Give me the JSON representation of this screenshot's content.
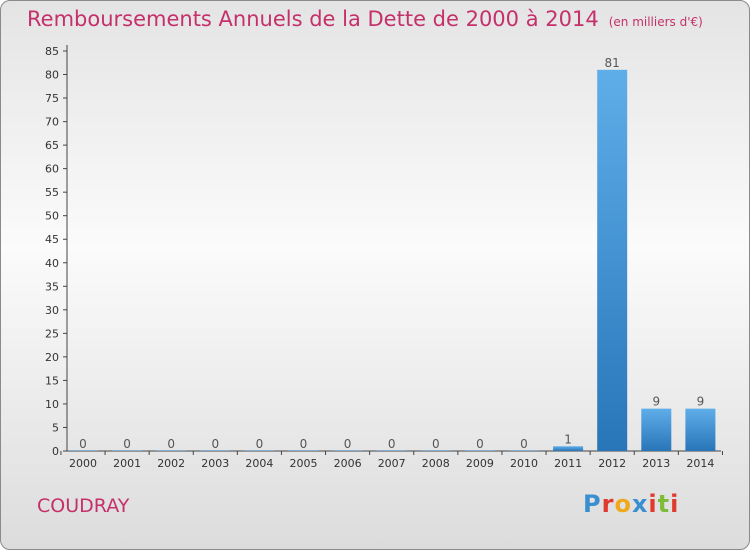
{
  "header": {
    "title": "Remboursements Annuels de la Dette de 2000 à 2014",
    "unit": "(en milliers d'€)"
  },
  "footer": {
    "place": "COUDRAY",
    "logo": "Proxiti",
    "logo_colors": [
      "#3a8fd0",
      "#e03a2f",
      "#f0a81c",
      "#3a8fd0",
      "#e03a2f",
      "#7dbb3a",
      "#e03a2f"
    ]
  },
  "colors": {
    "bar_light": "#5faee9",
    "bar_dark": "#2875b8",
    "accent": "#c5306b"
  },
  "chart_data": {
    "type": "bar",
    "title": "Remboursements Annuels de la Dette de 2000 à 2014",
    "categories": [
      "2000",
      "2001",
      "2002",
      "2003",
      "2004",
      "2005",
      "2006",
      "2007",
      "2008",
      "2009",
      "2010",
      "2011",
      "2012",
      "2013",
      "2014"
    ],
    "values": [
      0,
      0,
      0,
      0,
      0,
      0,
      0,
      0,
      0,
      0,
      0,
      1,
      81,
      9,
      9
    ],
    "xlabel": "",
    "ylabel": "",
    "ylim": [
      0,
      85
    ],
    "yticks": [
      0,
      5,
      10,
      15,
      20,
      25,
      30,
      35,
      40,
      45,
      50,
      55,
      60,
      65,
      70,
      75,
      80,
      85
    ],
    "grid": false,
    "legend": "none"
  }
}
